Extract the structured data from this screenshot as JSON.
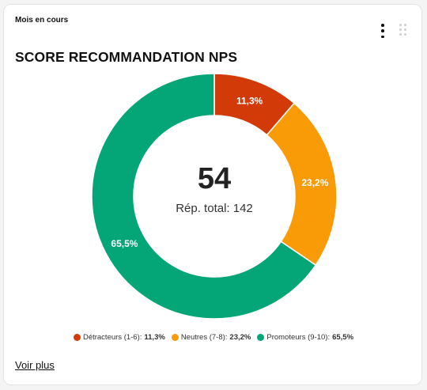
{
  "card": {
    "period": "Mois en cours",
    "title": "SCORE RECOMMANDATION NPS",
    "more_link": "Voir plus"
  },
  "chart_data": {
    "type": "pie",
    "center_value": "54",
    "center_label": "Rép. total: 142",
    "series": [
      {
        "name": "Détracteurs (1-6)",
        "value": 11.3,
        "label": "11,3%",
        "color": "#d23a07"
      },
      {
        "name": "Neutres (7-8)",
        "value": 23.2,
        "label": "23,2%",
        "color": "#f99b06"
      },
      {
        "name": "Promoteurs (9-10)",
        "value": 65.5,
        "label": "65,5%",
        "color": "#04a576"
      }
    ]
  },
  "legend": [
    {
      "name": "Détracteurs (1-6):",
      "value": "11,3%",
      "color": "#d23a07"
    },
    {
      "name": "Neutres (7-8):",
      "value": "23,2%",
      "color": "#f99b06"
    },
    {
      "name": "Promoteurs (9-10):",
      "value": "65,5%",
      "color": "#04a576"
    }
  ],
  "icons": {
    "menu": "kebab-menu-icon",
    "drag": "drag-handle-icon"
  }
}
